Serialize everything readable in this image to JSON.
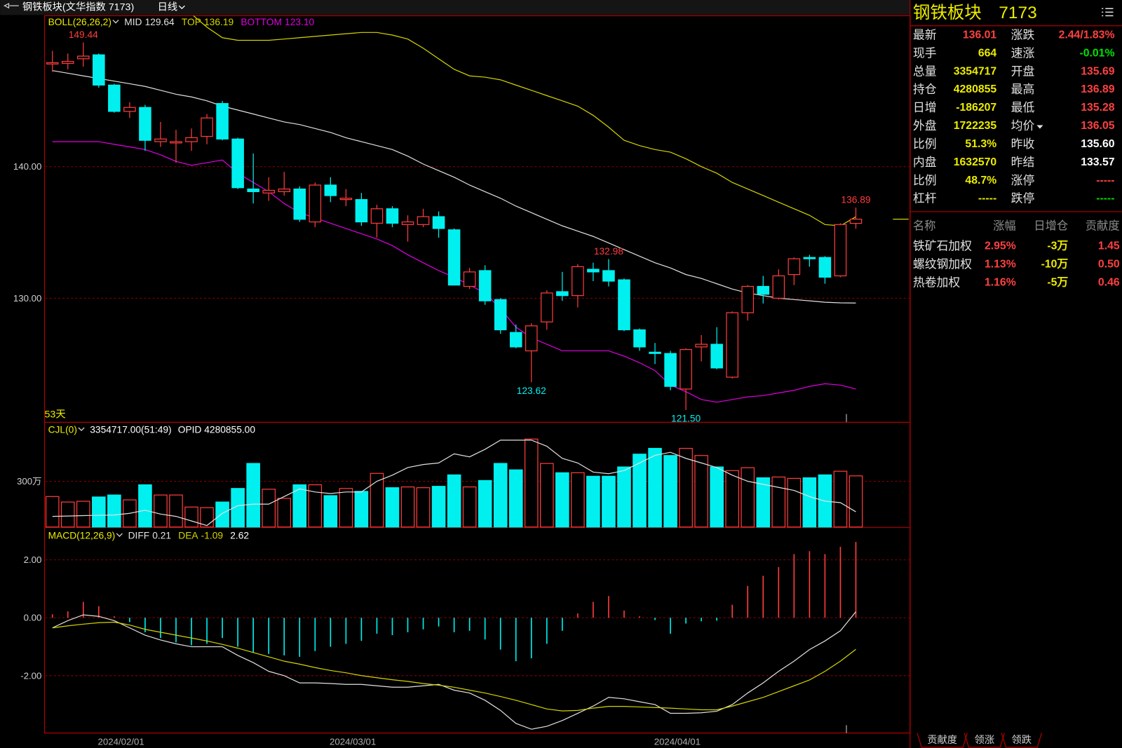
{
  "header": {
    "title": "钢铁板块(文华指数 7173)",
    "period": "日线"
  },
  "chart_data": [
    {
      "type": "candlestick",
      "indicator": "BOLL(26,26,2)",
      "period_label": "53天",
      "up_color": "#ff3c3c",
      "down_color": "#00f0f0",
      "open": [
        147.8,
        147.85,
        148.2,
        148.5,
        146.2,
        144.2,
        144.5,
        141.9,
        141.8,
        141.9,
        142.3,
        144.8,
        142.1,
        138.3,
        138.0,
        138.1,
        138.3,
        135.8,
        138.6,
        137.5,
        137.5,
        135.7,
        136.8,
        135.6,
        135.6,
        136.2,
        135.2,
        130.9,
        132.1,
        129.9,
        127.4,
        126.0,
        128.2,
        130.5,
        130.2,
        132.2,
        132.1,
        131.4,
        127.6,
        125.9,
        125.8,
        123.1,
        126.3,
        126.5,
        124.0,
        128.9,
        130.9,
        130.0,
        131.8,
        133.1,
        133.1,
        131.7,
        135.69
      ],
      "high": [
        148.8,
        148.6,
        149.44,
        148.6,
        146.3,
        144.9,
        144.7,
        143.4,
        142.8,
        142.9,
        144.0,
        145.0,
        142.2,
        141.0,
        139.2,
        139.6,
        138.5,
        138.8,
        139.2,
        138.3,
        138.0,
        137.1,
        137.0,
        136.3,
        136.8,
        136.6,
        135.3,
        132.3,
        132.5,
        130.0,
        128.0,
        128.1,
        130.6,
        132.0,
        132.6,
        132.7,
        132.98,
        131.5,
        127.7,
        126.6,
        126.0,
        126.2,
        127.2,
        127.8,
        129.0,
        131.0,
        131.7,
        132.2,
        133.1,
        133.3,
        133.2,
        135.7,
        136.89
      ],
      "low": [
        147.2,
        147.4,
        147.6,
        146.0,
        144.1,
        143.7,
        141.2,
        141.5,
        140.3,
        141.2,
        141.7,
        142.0,
        138.3,
        137.2,
        137.4,
        137.8,
        135.8,
        135.4,
        137.3,
        137.0,
        135.5,
        134.6,
        135.4,
        134.3,
        135.4,
        134.6,
        131.0,
        130.7,
        129.5,
        127.3,
        126.2,
        123.62,
        127.6,
        129.8,
        129.3,
        131.3,
        130.9,
        127.5,
        126.0,
        125.0,
        123.0,
        121.5,
        125.2,
        124.6,
        123.9,
        128.3,
        129.6,
        129.9,
        131.0,
        132.4,
        131.1,
        131.6,
        135.28
      ],
      "close": [
        147.9,
        148.0,
        148.4,
        146.2,
        144.2,
        144.5,
        142.0,
        142.1,
        141.9,
        142.2,
        143.7,
        142.1,
        138.4,
        138.1,
        138.2,
        138.3,
        136.0,
        138.6,
        137.8,
        137.6,
        135.8,
        136.8,
        135.7,
        135.8,
        136.2,
        135.3,
        131.0,
        132.0,
        129.8,
        127.6,
        126.3,
        127.9,
        130.4,
        130.2,
        132.4,
        132.0,
        131.3,
        127.6,
        126.3,
        125.8,
        123.3,
        126.1,
        126.5,
        124.7,
        128.9,
        130.9,
        130.3,
        131.7,
        133.0,
        133.0,
        131.6,
        135.6,
        136.01
      ],
      "high_labels": [
        null,
        null,
        "149.44",
        null,
        null,
        null,
        null,
        null,
        null,
        null,
        null,
        null,
        null,
        null,
        null,
        null,
        null,
        null,
        null,
        null,
        null,
        null,
        null,
        null,
        null,
        null,
        null,
        null,
        null,
        null,
        null,
        null,
        null,
        null,
        null,
        null,
        "132.98",
        null,
        null,
        null,
        null,
        null,
        null,
        null,
        null,
        null,
        null,
        null,
        null,
        null,
        null,
        null,
        "136.89"
      ],
      "low_labels": [
        null,
        null,
        null,
        null,
        null,
        null,
        null,
        null,
        null,
        null,
        null,
        null,
        null,
        null,
        null,
        null,
        null,
        null,
        null,
        null,
        null,
        null,
        null,
        null,
        null,
        null,
        null,
        null,
        null,
        null,
        null,
        "123.62",
        null,
        null,
        null,
        null,
        null,
        null,
        null,
        null,
        null,
        "121.50",
        null,
        null,
        null,
        null,
        null,
        null,
        null,
        null,
        null,
        null,
        null
      ],
      "series": [
        {
          "name": "MID",
          "color": "#e0e0e0",
          "readout": "129.64",
          "values": [
            147.3,
            147.1,
            146.9,
            146.7,
            146.5,
            146.3,
            146.1,
            145.8,
            145.5,
            145.3,
            145.0,
            144.6,
            144.3,
            144.0,
            143.7,
            143.4,
            143.2,
            142.9,
            142.6,
            142.2,
            141.9,
            141.6,
            141.3,
            140.8,
            140.2,
            139.7,
            139.2,
            138.6,
            138.1,
            137.6,
            137.0,
            136.5,
            136.0,
            135.5,
            135.1,
            134.7,
            134.2,
            133.7,
            133.2,
            132.7,
            132.3,
            131.8,
            131.5,
            131.1,
            130.7,
            130.4,
            130.2,
            130.0,
            129.9,
            129.8,
            129.7,
            129.65,
            129.64
          ]
        },
        {
          "name": "TOP",
          "color": "#d4d400",
          "readout": "136.19",
          "values": [
            null,
            null,
            null,
            null,
            null,
            null,
            null,
            null,
            null,
            151.6,
            150.6,
            149.8,
            149.6,
            149.6,
            149.6,
            149.7,
            149.8,
            149.9,
            150.0,
            150.1,
            150.2,
            150.2,
            150.0,
            149.7,
            149.0,
            148.2,
            147.4,
            146.9,
            146.8,
            146.6,
            146.2,
            145.8,
            145.4,
            145.0,
            144.6,
            143.9,
            143.0,
            142.0,
            141.6,
            141.3,
            141.1,
            140.6,
            140.0,
            139.5,
            138.8,
            138.3,
            137.8,
            137.3,
            136.8,
            136.3,
            135.6,
            135.5,
            136.19
          ]
        },
        {
          "name": "BOTTOM",
          "color": "#e000e0",
          "readout": "123.10",
          "values": [
            141.9,
            141.9,
            141.9,
            141.9,
            141.7,
            141.5,
            141.3,
            140.9,
            140.4,
            140.1,
            140.3,
            140.5,
            139.5,
            138.8,
            138.1,
            137.2,
            136.5,
            136.1,
            135.7,
            135.3,
            134.9,
            134.5,
            134.0,
            133.3,
            132.7,
            132.1,
            131.6,
            131.0,
            130.4,
            129.2,
            127.8,
            127.0,
            126.5,
            126.0,
            126.0,
            126.0,
            126.0,
            125.6,
            125.1,
            124.5,
            123.4,
            122.9,
            122.3,
            122.1,
            122.3,
            122.5,
            122.6,
            122.8,
            123.0,
            123.3,
            123.5,
            123.4,
            123.1
          ]
        }
      ],
      "ylim": [
        120.6,
        151.47
      ],
      "yticks": [
        {
          "value": 130,
          "label": "130.00"
        },
        {
          "value": 140,
          "label": "140.00"
        }
      ],
      "grid": true
    },
    {
      "type": "volume_bar",
      "indicator": "CJL(0)",
      "readouts": [
        "3354717.00(51:49)",
        "OPID 4280855.00"
      ],
      "up_color": "#ff3c3c",
      "down_color": "#00f0f0",
      "values": [
        2000000,
        1640000,
        1690000,
        1970000,
        2100000,
        1780000,
        2770000,
        2100000,
        2100000,
        1310000,
        1270000,
        1640000,
        2530000,
        4170000,
        2480000,
        1880000,
        2770000,
        2770000,
        2060000,
        2530000,
        2340000,
        3520000,
        2580000,
        2630000,
        2580000,
        2670000,
        3420000,
        2630000,
        3050000,
        4170000,
        3750000,
        5770000,
        4170000,
        3560000,
        3560000,
        3330000,
        3330000,
        3940000,
        4780000,
        5160000,
        4690000,
        5160000,
        4690000,
        3940000,
        3700000,
        3890000,
        3230000,
        3280000,
        3190000,
        3230000,
        3420000,
        3660000,
        3354717
      ],
      "series": [
        {
          "color": "#e0e0e0",
          "values": [
            700000,
            720000,
            750000,
            770000,
            790000,
            900000,
            1100000,
            850000,
            700000,
            400000,
            100000,
            900000,
            1400000,
            1500000,
            1500000,
            2000000,
            2500000,
            2300000,
            2200000,
            2300000,
            2300000,
            3000000,
            3400000,
            3900000,
            4100000,
            4200000,
            4800000,
            4600000,
            5100000,
            5700000,
            5700000,
            5700000,
            5300000,
            4500000,
            4200000,
            3600000,
            3500000,
            3700000,
            4200000,
            4700000,
            4900000,
            4500000,
            4200000,
            3900000,
            3400000,
            3000000,
            2800000,
            2600000,
            2400000,
            2000000,
            1700000,
            1600000,
            1000000
          ]
        }
      ],
      "ylim": [
        0,
        6800000
      ],
      "yticks": [
        {
          "value": 3000000,
          "label": "300万"
        }
      ],
      "grid": true
    },
    {
      "type": "macd",
      "indicator": "MACD(12,26,9)",
      "value_readout": "2.62",
      "up_color": "#ff3c3c",
      "down_color": "#00f0f0",
      "categories": [
        null,
        null,
        null,
        null,
        null,
        "2024/02/01",
        null,
        null,
        null,
        null,
        null,
        null,
        null,
        null,
        null,
        null,
        null,
        null,
        null,
        null,
        "2024/03/01",
        null,
        null,
        null,
        null,
        null,
        null,
        null,
        null,
        null,
        null,
        null,
        null,
        null,
        null,
        null,
        null,
        null,
        null,
        null,
        null,
        "2024/04/01",
        null,
        null,
        null,
        null,
        null,
        null,
        null,
        null,
        null,
        null,
        null
      ],
      "values": [
        0.12,
        0.22,
        0.55,
        0.4,
        0.05,
        -0.15,
        -0.5,
        -0.7,
        -0.85,
        -0.95,
        -0.9,
        -0.7,
        -1.0,
        -1.2,
        -1.25,
        -1.3,
        -1.35,
        -1.15,
        -1.0,
        -0.9,
        -0.8,
        -0.55,
        -0.6,
        -0.5,
        -0.4,
        -0.3,
        -0.5,
        -0.45,
        -0.75,
        -1.1,
        -1.5,
        -1.4,
        -0.9,
        -0.45,
        0.15,
        0.55,
        0.75,
        0.25,
        0.05,
        -0.08,
        -0.55,
        -0.2,
        -0.12,
        -0.1,
        0.45,
        1.1,
        1.45,
        1.75,
        2.2,
        2.3,
        2.2,
        2.45,
        2.62
      ],
      "series": [
        {
          "name": "DIFF",
          "color": "#e0e0e0",
          "readout": "0.21",
          "values": [
            -0.35,
            -0.1,
            0.1,
            0.05,
            -0.1,
            -0.35,
            -0.6,
            -0.77,
            -0.9,
            -1.0,
            -1.0,
            -1.0,
            -1.3,
            -1.55,
            -1.85,
            -2.0,
            -2.25,
            -2.25,
            -2.27,
            -2.3,
            -2.3,
            -2.35,
            -2.4,
            -2.4,
            -2.35,
            -2.3,
            -2.5,
            -2.6,
            -2.85,
            -3.2,
            -3.65,
            -3.85,
            -3.75,
            -3.55,
            -3.3,
            -3.05,
            -2.75,
            -2.8,
            -2.9,
            -3.0,
            -3.3,
            -3.3,
            -3.28,
            -3.23,
            -3.0,
            -2.6,
            -2.25,
            -1.85,
            -1.5,
            -1.1,
            -0.8,
            -0.45,
            0.21
          ]
        },
        {
          "name": "DEA",
          "color": "#d4d400",
          "readout": "-1.09",
          "values": [
            -0.35,
            -0.28,
            -0.22,
            -0.17,
            -0.15,
            -0.25,
            -0.4,
            -0.5,
            -0.6,
            -0.7,
            -0.8,
            -0.92,
            -1.05,
            -1.2,
            -1.35,
            -1.5,
            -1.6,
            -1.72,
            -1.82,
            -1.9,
            -2.0,
            -2.07,
            -2.14,
            -2.2,
            -2.27,
            -2.33,
            -2.4,
            -2.5,
            -2.6,
            -2.72,
            -2.85,
            -3.0,
            -3.15,
            -3.22,
            -3.2,
            -3.12,
            -3.06,
            -3.06,
            -3.08,
            -3.1,
            -3.12,
            -3.15,
            -3.18,
            -3.18,
            -3.05,
            -2.9,
            -2.75,
            -2.55,
            -2.35,
            -2.15,
            -1.85,
            -1.5,
            -1.09
          ]
        }
      ],
      "ylim": [
        -3.98,
        3.06
      ],
      "yticks": [
        {
          "value": 2,
          "label": "2.00"
        },
        {
          "value": 0,
          "label": "0.00"
        },
        {
          "value": -2,
          "label": "-2.00"
        }
      ],
      "grid": true
    }
  ],
  "quote_panel": {
    "name": "钢铁板块",
    "code": "7173",
    "rows": [
      [
        {
          "label": "最新",
          "value": "136.01",
          "color": "#ff4040"
        },
        {
          "label": "涨跌",
          "value": "2.44/1.83%",
          "color": "#ff4040"
        }
      ],
      [
        {
          "label": "现手",
          "value": "664",
          "color": "#ecec00"
        },
        {
          "label": "速涨",
          "value": "-0.01%",
          "color": "#00e000"
        }
      ],
      [
        {
          "label": "总量",
          "value": "3354717",
          "color": "#ecec00"
        },
        {
          "label": "开盘",
          "value": "135.69",
          "color": "#ff4040"
        }
      ],
      [
        {
          "label": "持仓",
          "value": "4280855",
          "color": "#ecec00"
        },
        {
          "label": "最高",
          "value": "136.89",
          "color": "#ff4040"
        }
      ],
      [
        {
          "label": "日增",
          "value": "-186207",
          "color": "#ecec00"
        },
        {
          "label": "最低",
          "value": "135.28",
          "color": "#ff4040"
        }
      ],
      [
        {
          "label": "外盘",
          "value": "1722235",
          "color": "#ecec00"
        },
        {
          "label": "均价",
          "value": "136.05",
          "color": "#ff4040",
          "dropdown": true
        }
      ],
      [
        {
          "label": "比例",
          "value": "51.3%",
          "color": "#ecec00"
        },
        {
          "label": "昨收",
          "value": "135.60",
          "color": "#ffffff"
        }
      ],
      [
        {
          "label": "内盘",
          "value": "1632570",
          "color": "#ecec00"
        },
        {
          "label": "昨结",
          "value": "133.57",
          "color": "#ffffff"
        }
      ],
      [
        {
          "label": "比例",
          "value": "48.7%",
          "color": "#ecec00"
        },
        {
          "label": "涨停",
          "value": "-----",
          "color": "#ff4040"
        }
      ],
      [
        {
          "label": "杠杆",
          "value": "-----",
          "color": "#ecec00"
        },
        {
          "label": "跌停",
          "value": "-----",
          "color": "#00e000"
        }
      ]
    ]
  },
  "components": {
    "columns": [
      "名称",
      "涨幅",
      "日增仓",
      "贡献度"
    ],
    "column_colors": [
      "#e0e0e0",
      "#ff4040",
      "#ecec00",
      "#ff4040"
    ],
    "rows": [
      [
        "铁矿石加权",
        "2.95%",
        "-3万",
        "1.45"
      ],
      [
        "螺纹钢加权",
        "1.13%",
        "-10万",
        "0.50"
      ],
      [
        "热卷加权",
        "1.16%",
        "-5万",
        "0.46"
      ]
    ]
  },
  "tabs": [
    "贡献度",
    "领涨",
    "领跌"
  ]
}
